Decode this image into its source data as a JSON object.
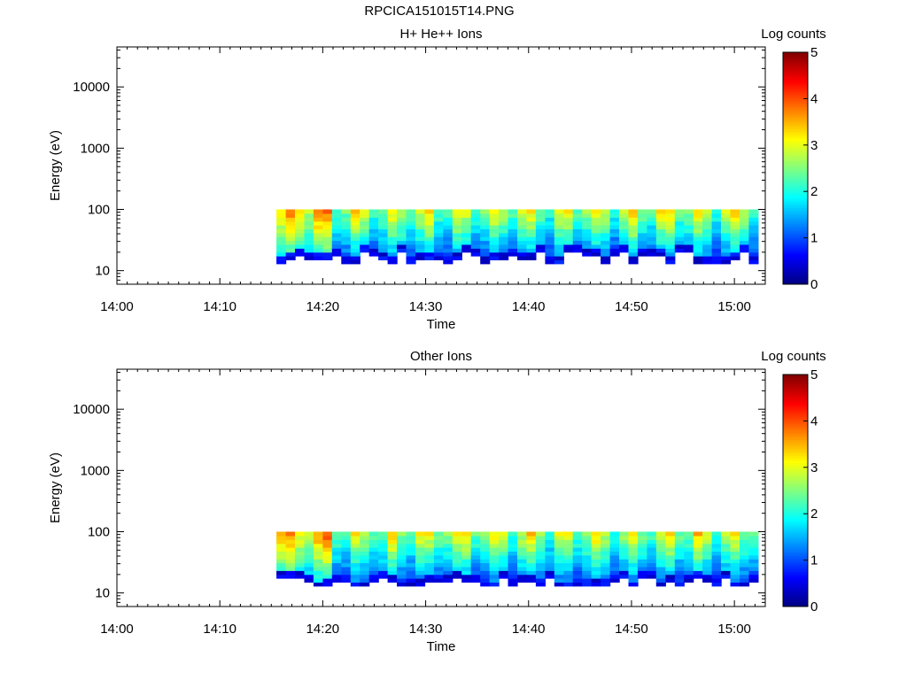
{
  "page": {
    "title": "RPCICA151015T14.PNG"
  },
  "colors": {
    "colorbar": [
      "#000080",
      "#0000ff",
      "#0080ff",
      "#00ffff",
      "#80ff80",
      "#ffff00",
      "#ff8000",
      "#ff0000",
      "#800000"
    ]
  },
  "chart_data": [
    {
      "type": "heatmap",
      "title": "H+ He++ Ions",
      "xlabel": "Time",
      "ylabel": "Energy (eV)",
      "yscale": "log",
      "ylim": [
        6,
        45000
      ],
      "xlim_minutes": [
        0,
        63
      ],
      "x_ticks": [
        "14:00",
        "14:10",
        "14:20",
        "14:30",
        "14:40",
        "14:50",
        "15:00"
      ],
      "y_ticks": [
        "10",
        "100",
        "1000",
        "10000"
      ],
      "colorbar": {
        "label": "Log counts",
        "ticks": [
          "0",
          "1",
          "2",
          "3",
          "4",
          "5"
        ],
        "range": [
          0,
          5
        ]
      },
      "data_time_range": [
        "14:15:30",
        "15:02:30"
      ],
      "data_energy_range_eV": [
        13,
        100
      ],
      "peak_log_counts": 3.8
    },
    {
      "type": "heatmap",
      "title": "Other Ions",
      "xlabel": "Time",
      "ylabel": "Energy (eV)",
      "yscale": "log",
      "ylim": [
        6,
        45000
      ],
      "xlim_minutes": [
        0,
        63
      ],
      "x_ticks": [
        "14:00",
        "14:10",
        "14:20",
        "14:30",
        "14:40",
        "14:50",
        "15:00"
      ],
      "y_ticks": [
        "10",
        "100",
        "1000",
        "10000"
      ],
      "colorbar": {
        "label": "Log counts",
        "ticks": [
          "0",
          "1",
          "2",
          "3",
          "4",
          "5"
        ],
        "range": [
          0,
          5
        ]
      },
      "data_time_range": [
        "14:15:30",
        "15:02:30"
      ],
      "data_energy_range_eV": [
        9,
        100
      ],
      "peak_log_counts": 3.9
    }
  ]
}
